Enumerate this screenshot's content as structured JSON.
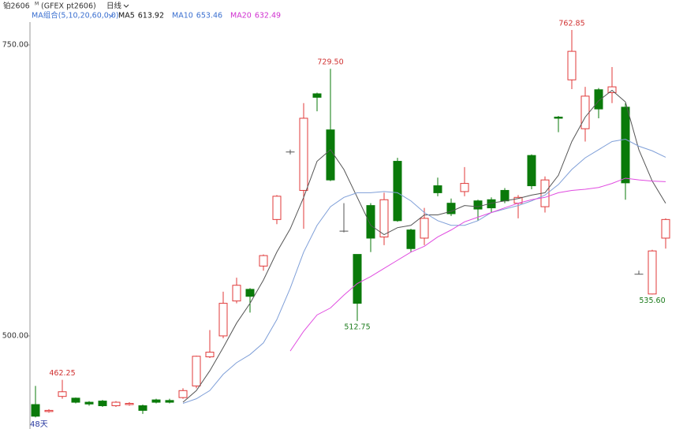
{
  "chart_data": {
    "type": "candlestick",
    "title": "铂2606",
    "title_sup": "M",
    "subtitle": "(GFEX pt2606)",
    "period": "日线",
    "ma_group": "MA组合(5,10,20,60,0,0)",
    "period_label": "48天",
    "up_color": "#e03a3a",
    "down_color": "#0a7a0a",
    "flat_color": "#555555",
    "ylim": [
      420,
      788.6
    ],
    "yticks": [
      {
        "value": 500,
        "label": "500.00"
      },
      {
        "value": 750,
        "label": "750.00"
      }
    ],
    "open": [
      441,
      435,
      448,
      446.5,
      443,
      444,
      440,
      441,
      440,
      445,
      444.5,
      447,
      457,
      482,
      500,
      530,
      540,
      560,
      600,
      658,
      625,
      708,
      677,
      590,
      570,
      612,
      585,
      650,
      591,
      584,
      629,
      614,
      624,
      616,
      617,
      625,
      614,
      655,
      611,
      688,
      720,
      678,
      711.5,
      709,
      696.5,
      553,
      536,
      584
    ],
    "high": [
      457,
      437,
      462.25,
      447,
      444,
      445,
      444,
      443,
      441,
      446,
      446,
      455,
      483,
      505,
      538,
      550,
      541,
      570,
      621,
      660,
      700,
      709,
      729.5,
      614,
      570,
      614,
      623,
      653,
      592,
      610,
      636,
      618,
      645,
      617,
      619,
      627,
      621,
      656,
      637,
      689,
      762.85,
      714,
      713,
      731,
      700,
      556,
      574,
      601
    ],
    "low": [
      430,
      434,
      446,
      442,
      440,
      439,
      439,
      440,
      433,
      442,
      442,
      446,
      455,
      481,
      498,
      528,
      520,
      556,
      596,
      656,
      592,
      693,
      633,
      589,
      512.75,
      572,
      578,
      598,
      572,
      578,
      620,
      603,
      620,
      599,
      606,
      614,
      601,
      626,
      606,
      675,
      712,
      667,
      687,
      700,
      617,
      553,
      535.6,
      575
    ],
    "close": [
      431,
      436,
      452,
      443,
      441.5,
      440,
      443,
      442,
      436,
      443,
      443,
      453,
      482.5,
      486,
      528,
      543.5,
      534,
      569,
      620,
      658,
      687,
      705,
      634,
      590,
      528,
      584,
      617,
      599,
      575,
      601,
      623,
      605,
      631,
      609,
      610,
      616,
      619,
      629,
      634,
      687,
      744.5,
      706,
      695,
      714,
      631.5,
      553,
      573,
      600
    ],
    "high_labels": [
      null,
      null,
      "462.25",
      null,
      null,
      null,
      null,
      null,
      null,
      null,
      null,
      null,
      null,
      null,
      null,
      null,
      null,
      null,
      null,
      null,
      null,
      null,
      "729.50",
      null,
      null,
      null,
      null,
      null,
      null,
      null,
      null,
      null,
      null,
      null,
      null,
      null,
      null,
      null,
      null,
      null,
      "762.85",
      null,
      null,
      null,
      null,
      null,
      null,
      null
    ],
    "low_labels": [
      null,
      null,
      null,
      null,
      null,
      null,
      null,
      null,
      null,
      null,
      null,
      null,
      null,
      null,
      null,
      null,
      null,
      null,
      null,
      null,
      null,
      null,
      null,
      null,
      "512.75",
      null,
      null,
      null,
      null,
      null,
      null,
      null,
      null,
      null,
      null,
      null,
      null,
      null,
      null,
      null,
      null,
      null,
      null,
      null,
      null,
      null,
      "535.60",
      null
    ],
    "series": [
      {
        "name": "MA5",
        "color": "#555555",
        "label_color": "#111111",
        "values": [
          null,
          null,
          null,
          null,
          null,
          null,
          null,
          null,
          null,
          null,
          null,
          443,
          453,
          470,
          490,
          511,
          528,
          548,
          572,
          592,
          619,
          650,
          660,
          643,
          619,
          595,
          587,
          593,
          595,
          604,
          604,
          607,
          612,
          611,
          614,
          616,
          618,
          621,
          623,
          638,
          667,
          688,
          702,
          711,
          701,
          660,
          633,
          613.92
        ]
      },
      {
        "name": "MA10",
        "color": "#7f9fd8",
        "label_color": "#3a6fd0",
        "values": [
          null,
          null,
          null,
          null,
          null,
          null,
          null,
          null,
          null,
          null,
          null,
          442,
          446,
          453,
          467,
          477,
          484,
          494,
          514,
          541,
          572,
          595,
          611,
          619,
          623,
          623,
          624,
          623,
          616,
          606,
          599,
          595,
          595,
          599,
          606,
          609,
          612,
          616,
          621,
          630,
          643,
          653,
          660,
          667,
          669,
          663,
          659,
          653.46
        ]
      },
      {
        "name": "MA20",
        "color": "#e04ce0",
        "label_color": "#d030d0",
        "values": [
          null,
          null,
          null,
          null,
          null,
          null,
          null,
          null,
          null,
          null,
          null,
          null,
          null,
          null,
          null,
          null,
          null,
          null,
          null,
          487,
          504,
          518,
          524,
          535,
          545,
          551,
          558,
          565,
          572,
          577,
          585,
          591,
          598,
          602,
          606,
          610,
          614,
          617,
          619,
          623,
          625,
          626,
          627.5,
          631,
          635.5,
          634,
          633,
          632.49
        ]
      }
    ]
  }
}
